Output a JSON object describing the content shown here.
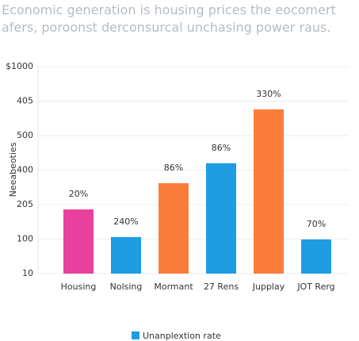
{
  "chart_data": {
    "type": "bar",
    "title": [
      "Economic generation is housing prices the eocomert",
      "afers, poroonst derconsurcal unchasing power raus."
    ],
    "y_label": "Neeabeoties",
    "categories": [
      "Housing",
      "Nolsing",
      "Mormant",
      "27 Rens",
      "Jupplay",
      "JOT Rerg"
    ],
    "values": [
      1.86,
      1.06,
      2.62,
      3.2,
      4.76,
      0.99
    ],
    "annotations": [
      "20%",
      "240%",
      "86%",
      "86%",
      "330%",
      "70%"
    ],
    "colors": [
      "#e8409c",
      "#1e9de2",
      "#fb7d3b",
      "#1e9de2",
      "#fb7d3b",
      "#1e9de2"
    ],
    "legend": {
      "name": "Unanplextion rate",
      "color": "#1e9de2"
    },
    "ylim": [
      0,
      6
    ],
    "yticks": [
      {
        "value": 0,
        "label": "10"
      },
      {
        "value": 1,
        "label": "100"
      },
      {
        "value": 2,
        "label": "205"
      },
      {
        "value": 3,
        "label": "400"
      },
      {
        "value": 4,
        "label": "500"
      },
      {
        "value": 5,
        "label": "405"
      },
      {
        "value": 6,
        "label": "$1000"
      }
    ],
    "grid": true
  }
}
